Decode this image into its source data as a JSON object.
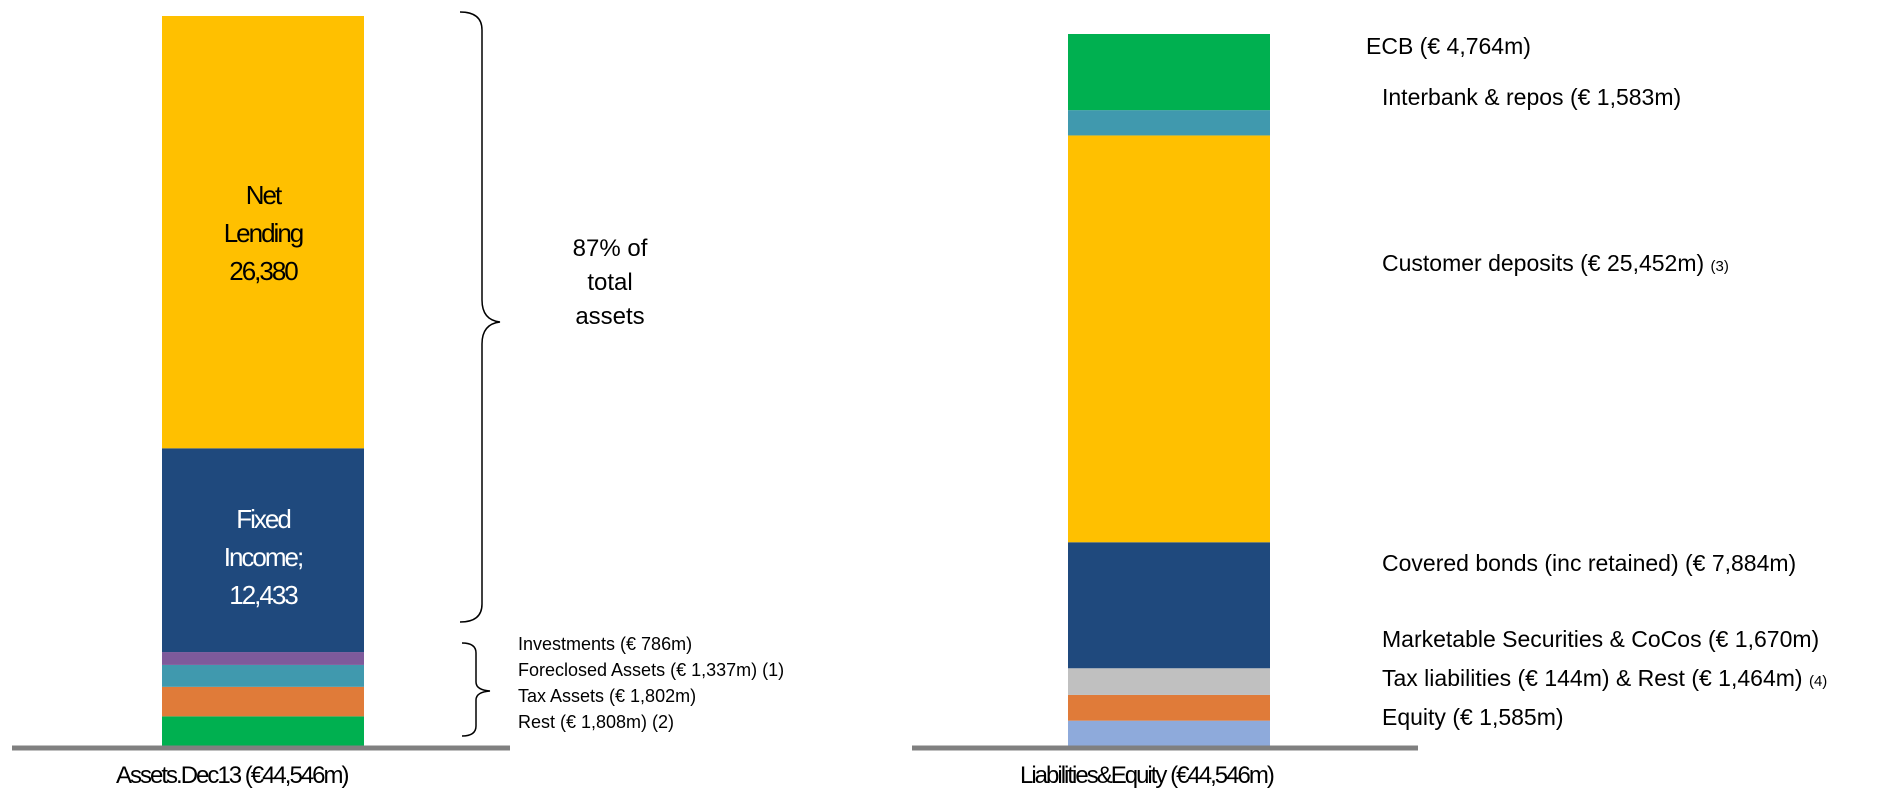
{
  "chart_data": [
    {
      "type": "bar",
      "stacked": true,
      "title": "",
      "category": "Assets.Dec13 (€44,546m)",
      "segments": [
        {
          "name": "Rest",
          "label": "Rest (€ 1,808m) (2)",
          "value": 1808,
          "color": "#00b050"
        },
        {
          "name": "Tax Assets",
          "label": "Tax Assets (€ 1,802m)",
          "value": 1802,
          "color": "#e07b39"
        },
        {
          "name": "Foreclosed Assets",
          "label": "Foreclosed Assets (€ 1,337m) (1)",
          "value": 1337,
          "color": "#4099ae"
        },
        {
          "name": "Investments",
          "label": "Investments (€ 786m)",
          "value": 786,
          "color": "#7e5a9b"
        },
        {
          "name": "Fixed Income",
          "label_lines": [
            "Fixed",
            "Income;",
            "12,433"
          ],
          "value": 12433,
          "color": "#1f497d"
        },
        {
          "name": "Net Lending",
          "label_lines": [
            "Net",
            "Lending",
            "26,380"
          ],
          "value": 26380,
          "color": "#ffc000"
        }
      ],
      "annotation_lines": [
        "87% of",
        "total",
        "assets"
      ]
    },
    {
      "type": "bar",
      "stacked": true,
      "title": "",
      "category": "Liabilities&Equity (€44,546m)",
      "segments": [
        {
          "name": "Equity",
          "label": "Equity (€ 1,585m)",
          "value": 1585,
          "color": "#8eaadb"
        },
        {
          "name": "Tax liabilities & Rest",
          "label": "Tax liabilities (€ 144m) & Rest (€ 1,464m)",
          "note": "(4)",
          "value": 1608,
          "color": "#e07b39"
        },
        {
          "name": "Marketable Securities & CoCos",
          "label": "Marketable Securities & CoCos (€ 1,670m)",
          "value": 1670,
          "color": "#c0c0c0"
        },
        {
          "name": "Covered bonds",
          "label": "Covered bonds (inc retained) (€ 7,884m)",
          "value": 7884,
          "color": "#1f497d"
        },
        {
          "name": "Customer deposits",
          "label": "Customer deposits (€ 25,452m)",
          "note": "(3)",
          "value": 25452,
          "color": "#ffc000"
        },
        {
          "name": "Interbank & repos",
          "label": "Interbank & repos (€ 1,583m)",
          "value": 1583,
          "color": "#4099ae"
        },
        {
          "name": "ECB",
          "label": "ECB (€ 4,764m)",
          "value": 4764,
          "color": "#00b050"
        }
      ]
    }
  ],
  "colors": {
    "baseline": "#808080",
    "bracket": "#000000"
  }
}
